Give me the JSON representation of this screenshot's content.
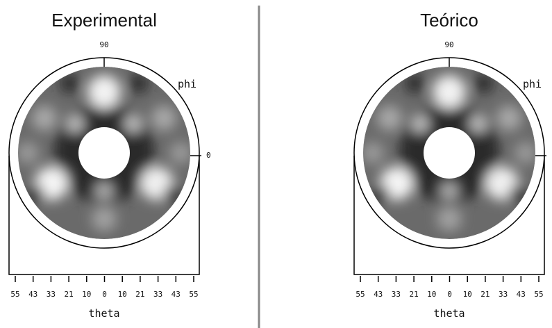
{
  "panels": [
    {
      "title": "Experimental",
      "top_label": "90",
      "side_label": "phi",
      "right_label": "0",
      "axis_ticks": [
        "55",
        "43",
        "33",
        "21",
        "10",
        "0",
        "10",
        "21",
        "33",
        "43",
        "55"
      ],
      "axis_label": "theta"
    },
    {
      "title": "Teórico",
      "top_label": "90",
      "side_label": "phi",
      "axis_ticks": [
        "55",
        "43",
        "33",
        "21",
        "10",
        "0",
        "10",
        "21",
        "33",
        "43",
        "55"
      ],
      "axis_label": "theta"
    }
  ]
}
